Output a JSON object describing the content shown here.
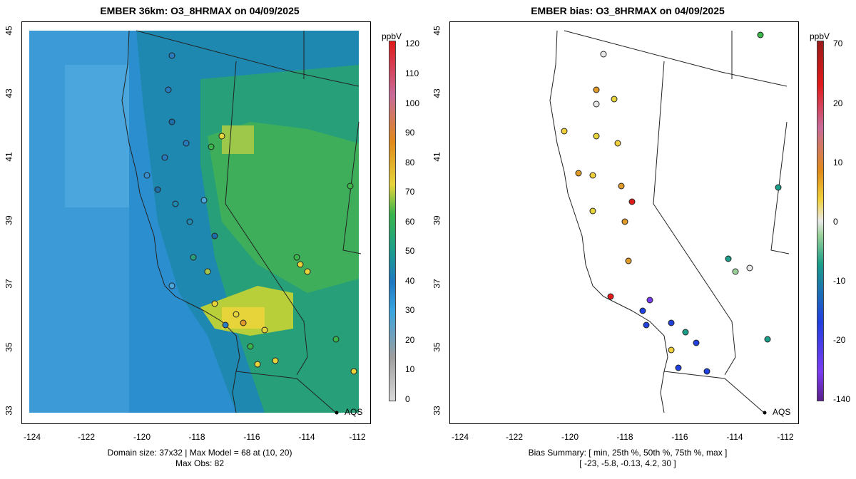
{
  "left": {
    "title": "EMBER 36km: O3_8HRMAX on 04/09/2025",
    "caption_line1": "Domain size: 37x32 | Max Model = 68 at (10, 20)",
    "caption_line2": "Max Obs: 82",
    "colorbar_unit": "ppbV",
    "colorbar_ticks": [
      "120",
      "110",
      "100",
      "90",
      "80",
      "70",
      "60",
      "50",
      "40",
      "30",
      "20",
      "10",
      "0"
    ],
    "colors": [
      "#d9d9d9",
      "#9e9e9e",
      "#3aa6e0",
      "#1f78c1",
      "#1c9e8a",
      "#3ab54a",
      "#e6d43a",
      "#e08a1a",
      "#c86b9a",
      "#e01a1a"
    ]
  },
  "right": {
    "title": "EMBER bias: O3_8HRMAX on 04/09/2025",
    "caption_line1": "Bias Summary: [ min, 25th %, 50th %, 75th %, max ]",
    "caption_line2": "[ -23,  -5.8,  -0.13,  4.2,  30 ]",
    "colorbar_unit": "ppbV",
    "colorbar_ticks": [
      "70",
      "20",
      "10",
      "0",
      "-10",
      "-20",
      "-140"
    ],
    "colors": [
      "#5b1f8c",
      "#7a3cf0",
      "#2040e0",
      "#1a9e8a",
      "#9ad29a",
      "#e8e8e8",
      "#f0d03a",
      "#e08a1a",
      "#c86b9a",
      "#e01a1a",
      "#9a1a1a"
    ]
  },
  "axes": {
    "x_ticks": [
      "-124",
      "-122",
      "-120",
      "-118",
      "-116",
      "-114",
      "-112"
    ],
    "y_ticks": [
      "45",
      "43",
      "41",
      "39",
      "37",
      "35",
      "33"
    ]
  },
  "marker_label": "AQS"
}
